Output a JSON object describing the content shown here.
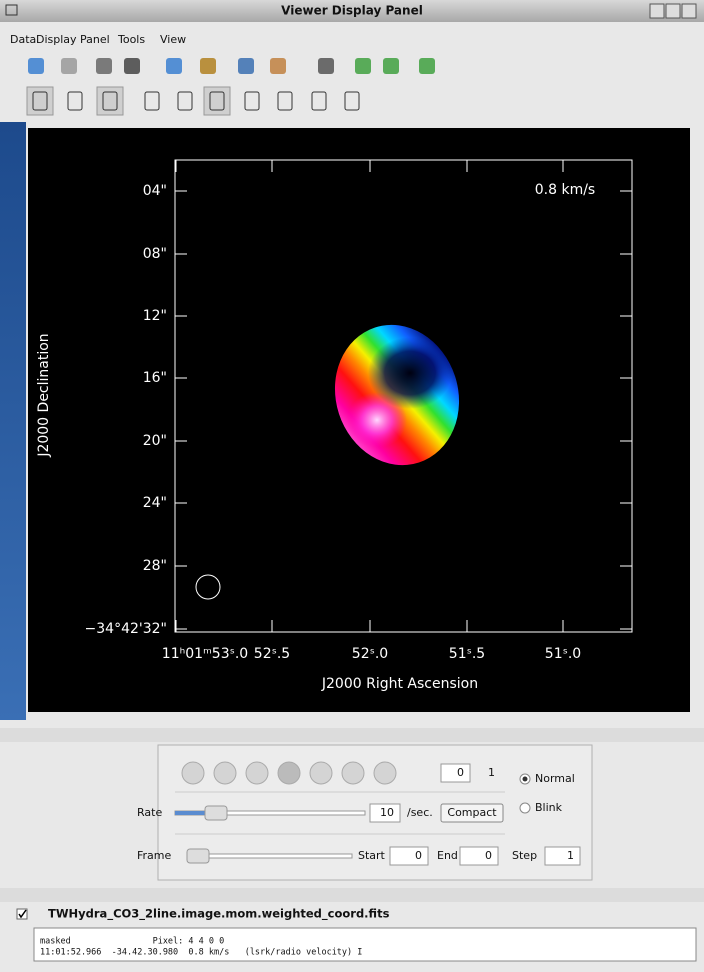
{
  "window": {
    "title": "Viewer Display Panel"
  },
  "menu": [
    "Data",
    "Display Panel",
    "Tools",
    "View"
  ],
  "display": {
    "y_ticks": [
      "04\"",
      "08\"",
      "12\"",
      "16\"",
      "20\"",
      "24\"",
      "28\"",
      "−34°42'32\""
    ],
    "x_ticks": [
      "11ʰ01ᵐ53ˢ.0",
      "52ˢ.5",
      "52ˢ.0",
      "51ˢ.5",
      "51ˢ.0"
    ],
    "x_axis_label": "J2000 Right Ascension",
    "y_axis_label": "J2000 Declination",
    "annotation": "0.8 km/s"
  },
  "animator": {
    "frame_value": 0,
    "frame_total": 1,
    "modes": [
      "Normal",
      "Blink"
    ],
    "rate_label": "Rate",
    "rate_value": 10,
    "rate_unit": "/sec.",
    "compact_button": "Compact",
    "frame_label": "Frame",
    "start_label": "Start",
    "start_value": 0,
    "end_label": "End",
    "end_value": 0,
    "step_label": "Step",
    "step_value": 1
  },
  "data_panel": {
    "file_name": "TWHydra_CO3_2line.image.mom.weighted_coord.fits",
    "status_lines": [
      "masked                Pixel: 4 4 0 0",
      "11:01:52.966  -34.42.30.980  0.8 km/s   (lsrk/radio velocity) I"
    ]
  }
}
